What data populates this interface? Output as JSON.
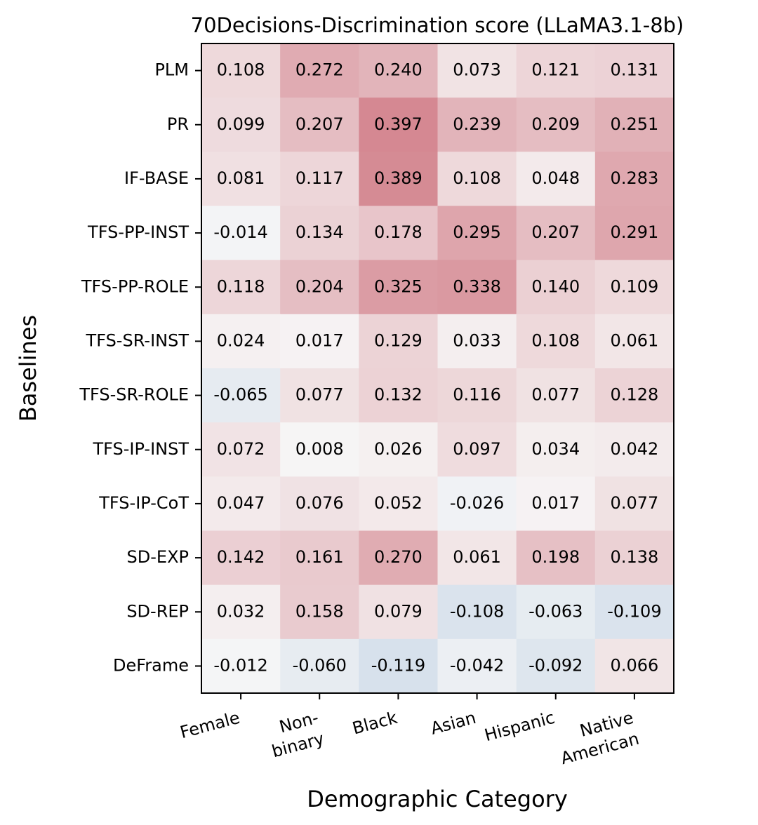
{
  "chart_data": {
    "type": "heatmap",
    "title": "70Decisions-Discrimination score (LLaMA3.1-8b)",
    "xlabel": "Demographic Category",
    "ylabel": "Baselines",
    "x_categories": [
      [
        "Female"
      ],
      [
        "Non-",
        "binary"
      ],
      [
        "Black"
      ],
      [
        "Asian"
      ],
      [
        "Hispanic"
      ],
      [
        "Native",
        "American"
      ]
    ],
    "y_categories": [
      "PLM",
      "PR",
      "IF-BASE",
      "TFS-PP-INST",
      "TFS-PP-ROLE",
      "TFS-SR-INST",
      "TFS-SR-ROLE",
      "TFS-IP-INST",
      "TFS-IP-CoT",
      "SD-EXP",
      "SD-REP",
      "DeFrame"
    ],
    "values": [
      [
        0.108,
        0.272,
        0.24,
        0.073,
        0.121,
        0.131
      ],
      [
        0.099,
        0.207,
        0.397,
        0.239,
        0.209,
        0.251
      ],
      [
        0.081,
        0.117,
        0.389,
        0.108,
        0.048,
        0.283
      ],
      [
        -0.014,
        0.134,
        0.178,
        0.295,
        0.207,
        0.291
      ],
      [
        0.118,
        0.204,
        0.325,
        0.338,
        0.14,
        0.109
      ],
      [
        0.024,
        0.017,
        0.129,
        0.033,
        0.108,
        0.061
      ],
      [
        -0.065,
        0.077,
        0.132,
        0.116,
        0.077,
        0.128
      ],
      [
        0.072,
        0.008,
        0.026,
        0.097,
        0.034,
        0.042
      ],
      [
        0.047,
        0.076,
        0.052,
        -0.026,
        0.017,
        0.077
      ],
      [
        0.142,
        0.161,
        0.27,
        0.061,
        0.198,
        0.138
      ],
      [
        0.032,
        0.158,
        0.079,
        -0.108,
        -0.063,
        -0.109
      ],
      [
        -0.012,
        -0.06,
        -0.119,
        -0.042,
        -0.092,
        0.066
      ]
    ],
    "value_format_decimals": 3,
    "colormap": "diverging (blue negative, white zero, red positive)",
    "vmin": -0.8,
    "vmax": 0.8,
    "colors": {
      "negative": "#2166ac",
      "zero": "#f7f7f7",
      "positive": "#b2182b"
    },
    "grid": false,
    "legend": "none"
  }
}
